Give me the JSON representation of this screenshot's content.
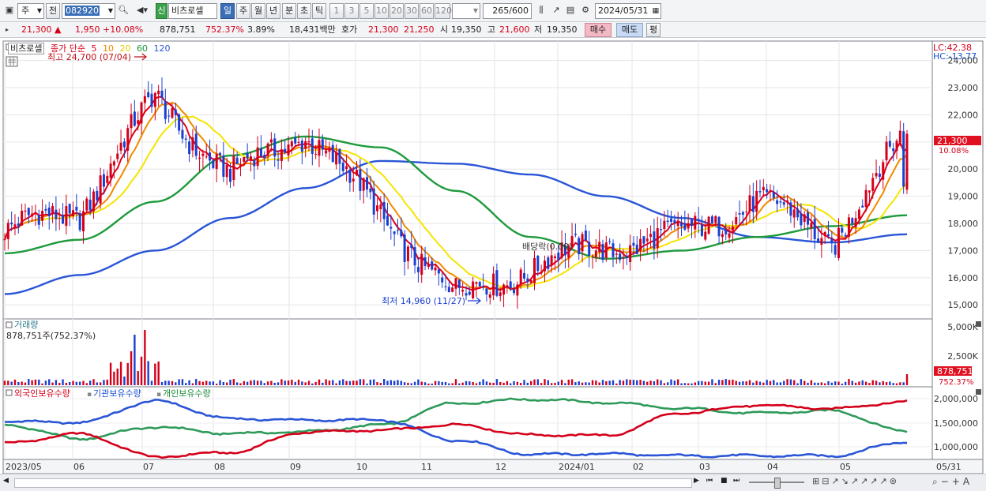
{
  "toolbar": {
    "market_select": "주",
    "prev_label": "전",
    "code_value": "082920",
    "type_badge": "신",
    "stock_name": "비츠로셀",
    "period_day": "일",
    "period_week": "주",
    "period_month": "월",
    "period_year": "년",
    "period_minute": "분",
    "period_second": "초",
    "period_tick": "틱",
    "interval_buttons": [
      "1",
      "3",
      "5",
      "10",
      "20",
      "30",
      "60",
      "120"
    ],
    "count_value": "265",
    "count_total": "/600",
    "date_value": "2024/05/31"
  },
  "quote": {
    "price": "21,300",
    "change_arrow": "▲",
    "change": "1,950",
    "change_pct": "+10.08%",
    "volume": "878,751",
    "volume_ratio": "752.37%",
    "turnover": "3.89%",
    "trade_amount": "18,431백만",
    "ask_label": "호가",
    "ask": "21,300",
    "bid": "21,250",
    "open_label": "시",
    "open": "19,350",
    "high_label": "고",
    "high": "21,600",
    "low_label": "저",
    "low": "19,350",
    "buy_button": "매수",
    "sell_button": "매도",
    "eval_button": "평"
  },
  "legend": {
    "stock": "비츠로셀",
    "ma_title": "종가 단순",
    "ma5": "5",
    "ma10": "10",
    "ma20": "20",
    "ma60": "60",
    "ma120": "120"
  },
  "annotations": {
    "high": "최고 24,700 (07/04)",
    "low": "최저 14,960 (11/27)",
    "dividend": "배당락(0.00)",
    "lc": "LC:42.38",
    "hc": "HC:-13.77",
    "last_price_tag": "21,300",
    "last_pct_tag": "10.08%"
  },
  "volume_panel": {
    "title": "거래량",
    "value_text": "878,751주(752.37%)",
    "axis": [
      "5,000K",
      "2,500K"
    ],
    "last_tag": "878,751",
    "last_pct": "752.37%"
  },
  "holding_panel": {
    "series_foreign": "외국인보유수량",
    "series_institution": "기관보유수량",
    "series_individual": "개인보유수량",
    "axis": [
      "2,000,000",
      "1,500,000",
      "1,000,000"
    ]
  },
  "x_axis_labels": [
    "2023/05",
    "06",
    "07",
    "08",
    "09",
    "10",
    "11",
    "12",
    "2024/01",
    "02",
    "03",
    "04",
    "05",
    "05/31"
  ],
  "colors": {
    "up": "#d4001a",
    "down": "#1a3fd0",
    "ma5": "#e0001a",
    "ma10": "#f08a00",
    "ma20": "#f5e400",
    "ma60": "#1e9a3c",
    "ma120": "#2a55d6"
  },
  "chart_data": {
    "type": "candlestick",
    "price_axis_ticks": [
      24000,
      23000,
      22000,
      21000,
      20000,
      19000,
      18000,
      17000,
      16000,
      15000
    ],
    "ylim": [
      14600,
      24600
    ],
    "months": [
      "2023/05",
      "06",
      "07",
      "08",
      "09",
      "10",
      "11",
      "12",
      "2024/01",
      "02",
      "03",
      "04",
      "05"
    ],
    "close_monthly": [
      17700,
      18500,
      22600,
      19700,
      21400,
      18300,
      15300,
      16400,
      17200,
      17500,
      18900,
      17400,
      21300
    ],
    "high": 24700,
    "high_date": "07/04",
    "low": 14960,
    "low_date": "11/27",
    "last": {
      "date": "2024/05/31",
      "open": 19350,
      "high": 21600,
      "low": 19350,
      "close": 21300,
      "volume": 878751
    },
    "ma120_monthly": [
      15400,
      16100,
      17000,
      18200,
      19300,
      20300,
      20200,
      19800,
      19000,
      18200,
      17500,
      17300,
      17600
    ],
    "ma60_monthly": [
      16900,
      17400,
      18800,
      20500,
      21200,
      20800,
      19200,
      17500,
      16700,
      17000,
      17500,
      17900,
      18300
    ],
    "holding": {
      "foreign": [
        1050000,
        1250000,
        760000,
        850000,
        1290000,
        1330000,
        1450000,
        1230000,
        1220000,
        1700000,
        1870000,
        1800000,
        1950000
      ],
      "institution": [
        1450000,
        1150000,
        1400000,
        1260000,
        1300000,
        1440000,
        1920000,
        2000000,
        1930000,
        1800000,
        1700000,
        1750000,
        1300000
      ],
      "individual": [
        1520000,
        1500000,
        1960000,
        1580000,
        1550000,
        1550000,
        1120000,
        810000,
        820000,
        780000,
        780000,
        780000,
        1080000
      ]
    }
  }
}
